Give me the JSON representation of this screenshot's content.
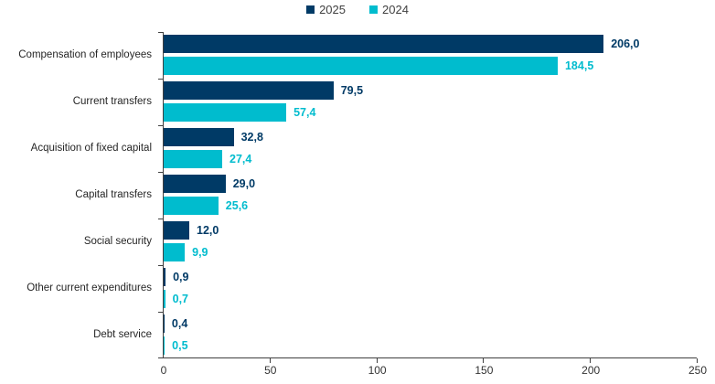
{
  "page": {
    "background": "#ffffff"
  },
  "legend": {
    "items": [
      {
        "label": "2025",
        "color": "#003A66"
      },
      {
        "label": "2024",
        "color": "#00BCCE"
      }
    ]
  },
  "chart_data": {
    "type": "bar",
    "orientation": "horizontal",
    "title": "",
    "xlabel": "",
    "ylabel": "",
    "categories": [
      "Compensation of employees",
      "Current transfers",
      "Acquisition of fixed capital",
      "Capital transfers",
      "Social security",
      "Other current expenditures",
      "Debt service"
    ],
    "series": [
      {
        "name": "2025",
        "color": "#003A66",
        "values": [
          206.0,
          79.5,
          32.8,
          29.0,
          12.0,
          0.9,
          0.4
        ],
        "value_labels": [
          "206,0",
          "79,5",
          "32,8",
          "29,0",
          "12,0",
          "0,9",
          "0,4"
        ]
      },
      {
        "name": "2024",
        "color": "#00BCCE",
        "values": [
          184.5,
          57.4,
          27.4,
          25.6,
          9.9,
          0.7,
          0.5
        ],
        "value_labels": [
          "184,5",
          "57,4",
          "27,4",
          "25,6",
          "9,9",
          "0,7",
          "0,5"
        ]
      }
    ],
    "xlim": [
      0,
      250
    ],
    "xticks": [
      "0",
      "50",
      "100",
      "150",
      "200",
      "250"
    ],
    "grid": false,
    "legend_position": "top-center"
  }
}
